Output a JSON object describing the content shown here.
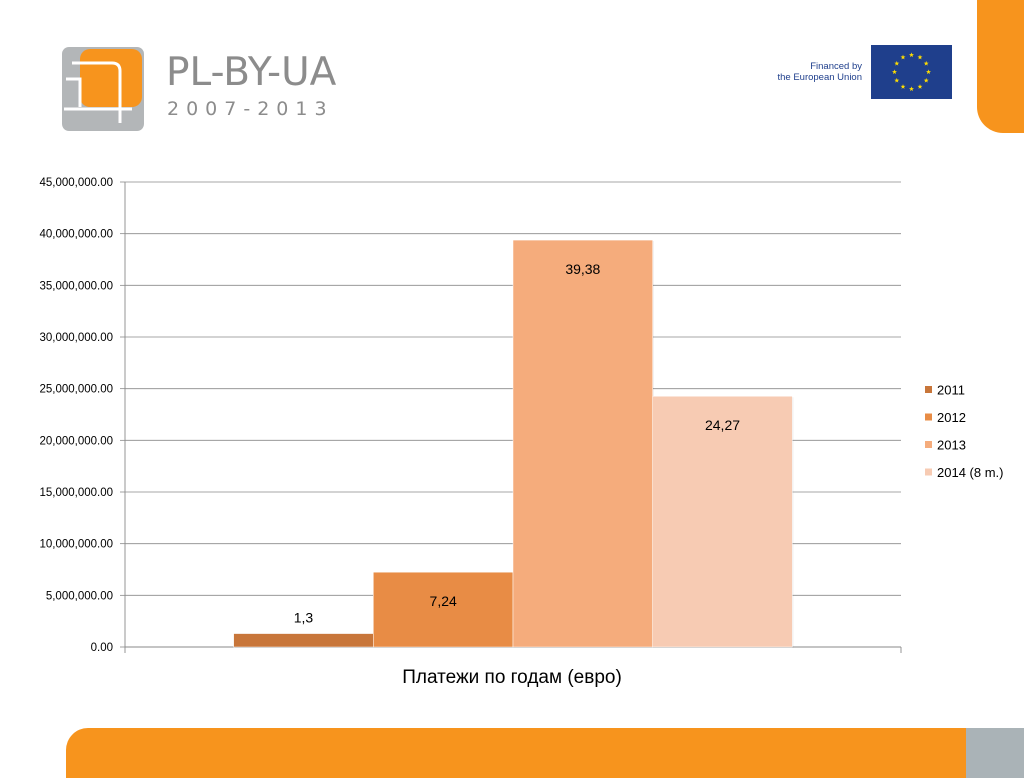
{
  "header": {
    "brand_title": "PL-BY-UA",
    "brand_years": "2007-2013",
    "funding_line1": "Financed by",
    "funding_line2": "the European Union"
  },
  "colors": {
    "accent_orange": "#f7941d",
    "footer_grey": "#aab3b7",
    "logo_grey": "#b3b6b8",
    "eu_blue": "#1f3f8c",
    "eu_star": "#ffdd00"
  },
  "chart_data": {
    "type": "bar",
    "title": "",
    "xlabel": "Платежи по годам (евро)",
    "ylabel": "",
    "ylim": [
      0,
      45000000
    ],
    "yticks": [
      "0.00",
      "5,000,000.00",
      "10,000,000.00",
      "15,000,000.00",
      "20,000,000.00",
      "25,000,000.00",
      "30,000,000.00",
      "35,000,000.00",
      "40,000,000.00",
      "45,000,000.00"
    ],
    "grid": true,
    "legend_position": "right",
    "series": [
      {
        "name": "2011",
        "value": 1300000,
        "label": "1,3",
        "color": "#c8763a"
      },
      {
        "name": "2012",
        "value": 7240000,
        "label": "7,24",
        "color": "#e88c45"
      },
      {
        "name": "2013",
        "value": 39380000,
        "label": "39,38",
        "color": "#f5ac7c"
      },
      {
        "name": "2014 (8 m.)",
        "value": 24270000,
        "label": "24,27",
        "color": "#f7cbb3"
      }
    ]
  }
}
